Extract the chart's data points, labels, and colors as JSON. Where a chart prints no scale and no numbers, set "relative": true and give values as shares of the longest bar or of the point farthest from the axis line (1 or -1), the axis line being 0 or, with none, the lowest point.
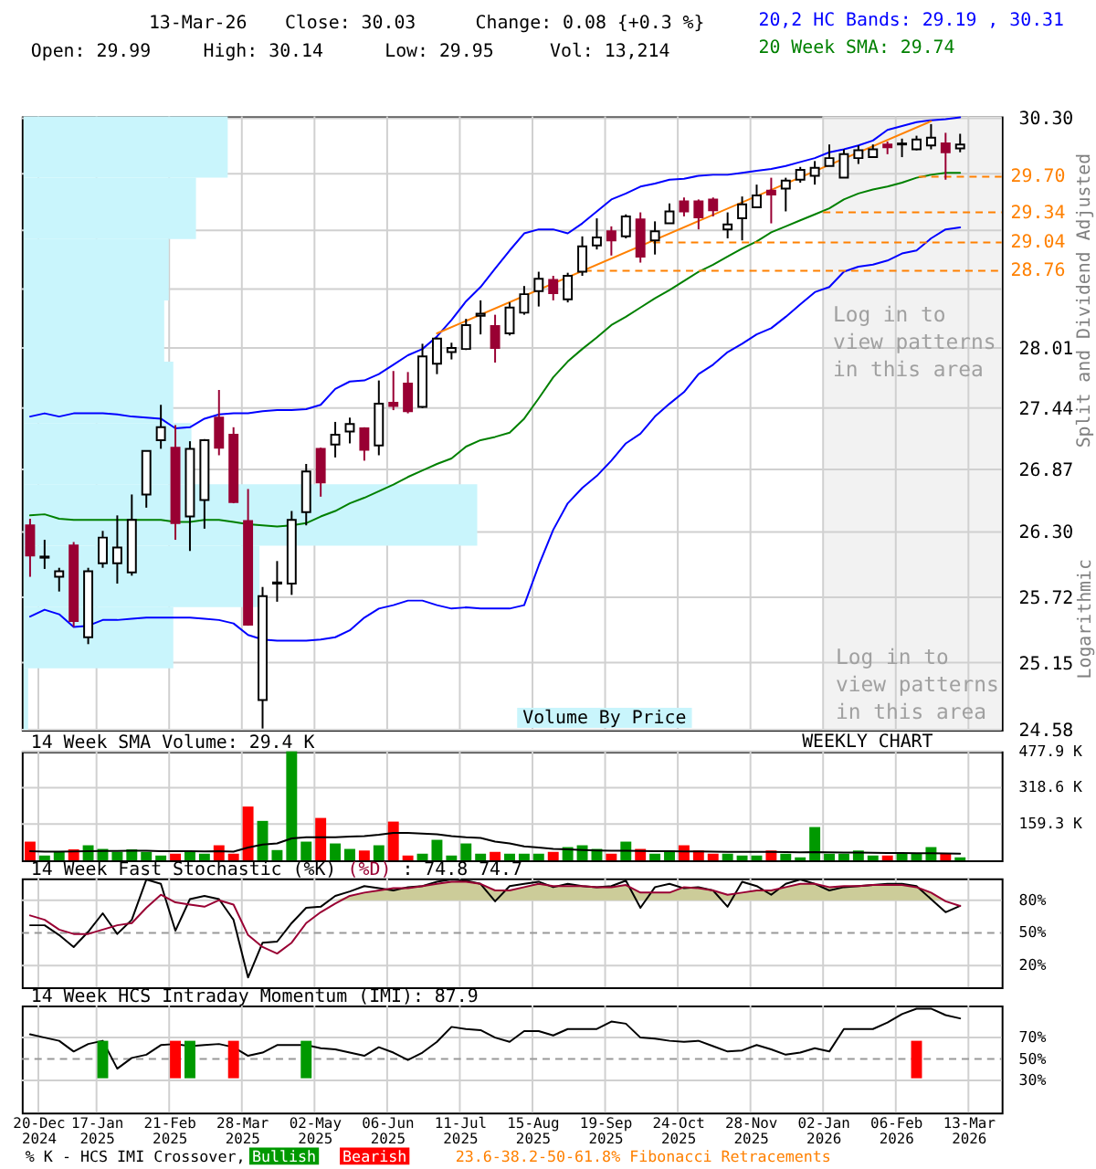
{
  "chart_data": [
    {
      "type": "candlestick",
      "annotations": [
        "13-Mar-26",
        "Close: 30.03",
        "Change: 0.08 {+0.3 %}",
        "Open: 29.99",
        "High: 30.14",
        "Low: 29.95",
        "Vol: 13,214",
        "Log in to view patterns in this area",
        "WEEKLY CHART",
        "Logarithmic"
      ],
      "ylabel": "Split and Dividend Adjusted",
      "x": [
        "2024-12-16",
        "2024-12-23",
        "2024-12-30",
        "2025-01-06",
        "2025-01-13",
        "2025-01-20",
        "2025-01-27",
        "2025-02-03",
        "2025-02-10",
        "2025-02-17",
        "2025-02-24",
        "2025-03-03",
        "2025-03-10",
        "2025-03-17",
        "2025-03-24",
        "2025-03-31",
        "2025-04-07",
        "2025-04-14",
        "2025-04-21",
        "2025-04-28",
        "2025-05-05",
        "2025-05-12",
        "2025-05-19",
        "2025-05-26",
        "2025-06-02",
        "2025-06-09",
        "2025-06-16",
        "2025-06-23",
        "2025-06-30",
        "2025-07-07",
        "2025-07-14",
        "2025-07-21",
        "2025-07-28",
        "2025-08-04",
        "2025-08-11",
        "2025-08-18",
        "2025-08-25",
        "2025-09-01",
        "2025-09-08",
        "2025-09-15",
        "2025-09-22",
        "2025-09-29",
        "2025-10-06",
        "2025-10-13",
        "2025-10-20",
        "2025-10-27",
        "2025-11-03",
        "2025-11-10",
        "2025-11-17",
        "2025-11-24",
        "2025-12-01",
        "2025-12-08",
        "2025-12-15",
        "2025-12-22",
        "2025-12-29",
        "2026-01-05",
        "2026-01-12",
        "2026-01-19",
        "2026-01-26",
        "2026-02-02",
        "2026-02-09",
        "2026-02-16",
        "2026-02-23",
        "2026-03-02",
        "2026-03-09"
      ],
      "ohlc": [
        [
          26.36,
          26.42,
          25.9,
          26.09
        ],
        [
          26.07,
          26.23,
          25.97,
          26.08
        ],
        [
          25.9,
          25.98,
          25.77,
          25.95
        ],
        [
          26.18,
          26.21,
          25.46,
          25.51
        ],
        [
          25.37,
          25.98,
          25.31,
          25.95
        ],
        [
          26.02,
          26.31,
          25.98,
          26.25
        ],
        [
          26.02,
          26.45,
          25.84,
          26.16
        ],
        [
          25.94,
          26.64,
          25.91,
          26.41
        ],
        [
          26.64,
          27.04,
          26.52,
          27.04
        ],
        [
          27.14,
          27.47,
          27.06,
          27.26
        ],
        [
          27.07,
          27.28,
          26.23,
          26.38
        ],
        [
          26.44,
          27.13,
          26.13,
          27.06
        ],
        [
          26.59,
          27.15,
          26.33,
          27.14
        ],
        [
          27.35,
          27.61,
          27.0,
          27.07
        ],
        [
          27.19,
          27.26,
          26.56,
          26.57
        ],
        [
          26.4,
          26.69,
          25.47,
          25.48
        ],
        [
          24.83,
          25.81,
          24.59,
          25.73
        ],
        [
          25.84,
          26.04,
          25.68,
          25.85
        ],
        [
          25.84,
          26.49,
          25.74,
          26.41
        ],
        [
          26.48,
          26.92,
          26.36,
          26.85
        ],
        [
          27.06,
          27.07,
          26.62,
          26.75
        ],
        [
          27.1,
          27.31,
          26.98,
          27.19
        ],
        [
          27.22,
          27.35,
          27.11,
          27.29
        ],
        [
          27.25,
          27.26,
          26.95,
          27.05
        ],
        [
          27.09,
          27.7,
          27.0,
          27.48
        ],
        [
          27.49,
          27.79,
          27.42,
          27.46
        ],
        [
          27.67,
          27.78,
          27.39,
          27.41
        ],
        [
          27.45,
          28.05,
          27.44,
          27.93
        ],
        [
          27.86,
          28.11,
          27.76,
          28.1
        ],
        [
          27.97,
          28.06,
          27.9,
          28.01
        ],
        [
          28.0,
          28.29,
          27.99,
          28.23
        ],
        [
          28.32,
          28.47,
          28.14,
          28.34
        ],
        [
          28.22,
          28.33,
          27.87,
          28.01
        ],
        [
          28.15,
          28.45,
          28.13,
          28.4
        ],
        [
          28.35,
          28.61,
          28.33,
          28.53
        ],
        [
          28.56,
          28.75,
          28.41,
          28.68
        ],
        [
          28.67,
          28.71,
          28.47,
          28.54
        ],
        [
          28.48,
          28.74,
          28.45,
          28.71
        ],
        [
          28.75,
          29.1,
          28.71,
          29.0
        ],
        [
          29.01,
          29.28,
          28.97,
          29.09
        ],
        [
          29.15,
          29.2,
          28.91,
          29.06
        ],
        [
          29.1,
          29.32,
          29.08,
          29.3
        ],
        [
          29.27,
          29.34,
          28.84,
          28.9
        ],
        [
          29.06,
          29.25,
          28.92,
          29.15
        ],
        [
          29.23,
          29.43,
          29.23,
          29.35
        ],
        [
          29.45,
          29.49,
          29.3,
          29.35
        ],
        [
          29.45,
          29.47,
          29.17,
          29.29
        ],
        [
          29.47,
          29.49,
          29.3,
          29.36
        ],
        [
          29.17,
          29.34,
          29.08,
          29.22
        ],
        [
          29.28,
          29.5,
          29.06,
          29.42
        ],
        [
          29.39,
          29.62,
          29.39,
          29.51
        ],
        [
          29.56,
          29.69,
          29.23,
          29.52
        ],
        [
          29.58,
          29.69,
          29.35,
          29.66
        ],
        [
          29.67,
          29.8,
          29.64,
          29.77
        ],
        [
          29.71,
          29.86,
          29.62,
          29.79
        ],
        [
          29.81,
          30.03,
          29.81,
          29.89
        ],
        [
          29.69,
          29.98,
          29.69,
          29.93
        ],
        [
          29.89,
          30.02,
          29.83,
          29.97
        ],
        [
          29.9,
          30.03,
          29.9,
          29.98
        ],
        [
          30.03,
          30.06,
          29.93,
          30.0
        ],
        [
          30.03,
          30.09,
          29.9,
          30.04
        ],
        [
          29.98,
          30.12,
          29.97,
          30.08
        ],
        [
          30.02,
          30.24,
          29.98,
          30.1
        ],
        [
          30.04,
          30.15,
          29.67,
          29.95
        ],
        [
          29.99,
          30.14,
          29.95,
          30.03
        ]
      ],
      "colors": [
        "#990033",
        "#000000",
        "#000000",
        "#990033",
        "#000000",
        "#000000",
        "#000000",
        "#000000",
        "#000000",
        "#000000",
        "#990033",
        "#000000",
        "#000000",
        "#990033",
        "#990033",
        "#990033",
        "#000000",
        "#000000",
        "#000000",
        "#000000",
        "#990033",
        "#000000",
        "#000000",
        "#990033",
        "#000000",
        "#990033",
        "#990033",
        "#000000",
        "#000000",
        "#000000",
        "#000000",
        "#000000",
        "#990033",
        "#000000",
        "#000000",
        "#000000",
        "#990033",
        "#000000",
        "#000000",
        "#000000",
        "#990033",
        "#000000",
        "#990033",
        "#000000",
        "#000000",
        "#990033",
        "#990033",
        "#990033",
        "#000000",
        "#000000",
        "#000000",
        "#990033",
        "#000000",
        "#000000",
        "#000000",
        "#000000",
        "#000000",
        "#000000",
        "#000000",
        "#990033",
        "#000000",
        "#000000",
        "#000000",
        "#990033",
        "#000000"
      ],
      "series": [
        {
          "type": "line",
          "name": "20,2 HC Bands: 29.19 , 30.31",
          "color": "#0000ff",
          "values": [
            27.36,
            27.39,
            27.36,
            27.39,
            27.39,
            27.39,
            27.38,
            27.36,
            27.35,
            27.34,
            27.25,
            27.26,
            27.34,
            27.38,
            27.39,
            27.39,
            27.41,
            27.42,
            27.42,
            27.43,
            27.47,
            27.62,
            27.69,
            27.7,
            27.76,
            27.85,
            27.94,
            28.0,
            28.12,
            28.28,
            28.46,
            28.6,
            28.78,
            28.96,
            29.13,
            29.17,
            29.17,
            29.13,
            29.23,
            29.35,
            29.47,
            29.53,
            29.6,
            29.63,
            29.67,
            29.68,
            29.71,
            29.72,
            29.72,
            29.74,
            29.76,
            29.78,
            29.81,
            29.85,
            29.89,
            29.95,
            29.98,
            30.02,
            30.07,
            30.18,
            30.22,
            30.26,
            30.28,
            30.29,
            30.31
          ]
        },
        {
          "type": "line",
          "color": "#0000ff",
          "values": [
            25.55,
            25.61,
            25.57,
            25.46,
            25.47,
            25.52,
            25.52,
            25.53,
            25.54,
            25.54,
            25.54,
            25.54,
            25.53,
            25.52,
            25.49,
            25.39,
            25.35,
            25.34,
            25.34,
            25.34,
            25.35,
            25.37,
            25.43,
            25.54,
            25.62,
            25.65,
            25.69,
            25.69,
            25.65,
            25.62,
            25.63,
            25.62,
            25.62,
            25.62,
            25.65,
            26.0,
            26.32,
            26.56,
            26.7,
            26.81,
            26.95,
            27.11,
            27.2,
            27.36,
            27.48,
            27.59,
            27.76,
            27.85,
            27.97,
            28.05,
            28.14,
            28.2,
            28.31,
            28.43,
            28.55,
            28.6,
            28.75,
            28.8,
            28.82,
            28.86,
            28.93,
            28.96,
            29.08,
            29.17,
            29.19
          ]
        },
        {
          "type": "line",
          "name": "20 Week SMA: 29.74",
          "color": "#008000",
          "values": [
            26.45,
            26.46,
            26.42,
            26.41,
            26.41,
            26.41,
            26.41,
            26.41,
            26.41,
            26.41,
            26.39,
            26.39,
            26.41,
            26.41,
            26.39,
            26.37,
            26.36,
            26.35,
            26.36,
            26.38,
            26.44,
            26.49,
            26.56,
            26.61,
            26.67,
            26.73,
            26.8,
            26.86,
            26.92,
            26.97,
            27.08,
            27.14,
            27.17,
            27.21,
            27.34,
            27.53,
            27.73,
            27.88,
            28.0,
            28.11,
            28.23,
            28.31,
            28.4,
            28.49,
            28.57,
            28.66,
            28.75,
            28.82,
            28.9,
            28.98,
            29.05,
            29.14,
            29.2,
            29.26,
            29.32,
            29.38,
            29.47,
            29.53,
            29.57,
            29.6,
            29.64,
            29.69,
            29.72,
            29.74,
            29.74
          ]
        },
        {
          "type": "line",
          "color": "#ff8000",
          "x": [
            "2025-06-30",
            "2026-02-23"
          ],
          "values": [
            28.15,
            30.27
          ]
        },
        {
          "type": "line",
          "name": "29.70",
          "color": "#ff8000",
          "line_style": "dashed",
          "x": [
            "2026-02-17",
            "2026-03-29"
          ],
          "values": [
            29.7,
            29.7
          ]
        },
        {
          "type": "line",
          "name": "29.34",
          "color": "#ff8000",
          "line_style": "dashed",
          "x": [
            "2026-01-02",
            "2026-03-29"
          ],
          "values": [
            29.34,
            29.34
          ]
        },
        {
          "type": "line",
          "name": "29.04",
          "color": "#ff8000",
          "line_style": "dashed",
          "x": [
            "2025-10-12",
            "2026-03-29"
          ],
          "values": [
            29.04,
            29.04
          ]
        },
        {
          "type": "line",
          "name": "28.76",
          "color": "#ff8000",
          "line_style": "dashed",
          "x": [
            "2025-09-09",
            "2026-03-29"
          ],
          "values": [
            28.76,
            28.76
          ]
        }
      ],
      "bands": [
        {
          "axis": "x",
          "from": "2026-01-02",
          "to": "2026-03-29",
          "label": "Log in to view patterns in this area",
          "color": "#f2f2f2"
        }
      ],
      "log": true,
      "ylim": [
        24.58,
        30.32
      ],
      "yticks": [
        24.58,
        25.15,
        25.72,
        {
          "value": 26.3,
          "label": "26.30"
        },
        26.87,
        27.44,
        28.01,
        {
          "value": 28.58,
          "label": null
        },
        {
          "value": 29.16,
          "label": null
        },
        {
          "value": 29.73,
          "label": null
        },
        {
          "value": 30.3,
          "label": "30.30"
        }
      ],
      "xlim": [
        "2024-12-12",
        "2026-03-29"
      ],
      "xticks": [
        "2024-12-20",
        "2025-01-17",
        "2025-02-21",
        "2025-03-28",
        "2025-05-02",
        "2025-06-06",
        "2025-07-11",
        "2025-08-15",
        "2025-09-19",
        "2025-10-24",
        "2025-11-28",
        "2026-01-02",
        "2026-02-06",
        "2026-03-13"
      ],
      "grid": true,
      "tick_labels": "y"
    },
    {
      "type": "bar",
      "orientation": "horizontal",
      "relative": true,
      "legend": "bottom",
      "categories": [
        null,
        null,
        null,
        null,
        null,
        null,
        null,
        null,
        null,
        null
      ],
      "series": [
        {
          "name": "Volume By Price",
          "color": "#c9f5fc",
          "values": [
            0.45,
            0.38,
            0.32,
            0.31,
            0.33,
            0.37,
            1,
            0.52,
            0.33,
            0.01
          ]
        }
      ]
    },
    {
      "type": "bar",
      "title": "14 Week SMA Volume: 29.4 K",
      "x": [
        "2024-12-16",
        "2024-12-23",
        "2024-12-30",
        "2025-01-06",
        "2025-01-13",
        "2025-01-20",
        "2025-01-27",
        "2025-02-03",
        "2025-02-10",
        "2025-02-17",
        "2025-02-24",
        "2025-03-03",
        "2025-03-10",
        "2025-03-17",
        "2025-03-24",
        "2025-03-31",
        "2025-04-07",
        "2025-04-14",
        "2025-04-21",
        "2025-04-28",
        "2025-05-05",
        "2025-05-12",
        "2025-05-19",
        "2025-05-26",
        "2025-06-02",
        "2025-06-09",
        "2025-06-16",
        "2025-06-23",
        "2025-06-30",
        "2025-07-07",
        "2025-07-14",
        "2025-07-21",
        "2025-07-28",
        "2025-08-04",
        "2025-08-11",
        "2025-08-18",
        "2025-08-25",
        "2025-09-01",
        "2025-09-08",
        "2025-09-15",
        "2025-09-22",
        "2025-09-29",
        "2025-10-06",
        "2025-10-13",
        "2025-10-20",
        "2025-10-27",
        "2025-11-03",
        "2025-11-10",
        "2025-11-17",
        "2025-11-24",
        "2025-12-01",
        "2025-12-08",
        "2025-12-15",
        "2025-12-22",
        "2025-12-29",
        "2026-01-05",
        "2026-01-12",
        "2026-01-19",
        "2026-01-26",
        "2026-02-02",
        "2026-02-09",
        "2026-02-16",
        "2026-02-23",
        "2026-03-02",
        "2026-03-09"
      ],
      "series": [
        {
          "type": "bar",
          "colors": [
            "#ff0000",
            "#009900",
            "#009900",
            "#ff0000",
            "#009900",
            "#009900",
            "#009900",
            "#009900",
            "#009900",
            "#009900",
            "#ff0000",
            "#009900",
            "#009900",
            "#ff0000",
            "#ff0000",
            "#ff0000",
            "#009900",
            "#009900",
            "#009900",
            "#009900",
            "#ff0000",
            "#009900",
            "#009900",
            "#ff0000",
            "#009900",
            "#ff0000",
            "#ff0000",
            "#009900",
            "#009900",
            "#009900",
            "#009900",
            "#009900",
            "#ff0000",
            "#009900",
            "#009900",
            "#009900",
            "#ff0000",
            "#009900",
            "#009900",
            "#009900",
            "#ff0000",
            "#009900",
            "#ff0000",
            "#009900",
            "#009900",
            "#ff0000",
            "#ff0000",
            "#ff0000",
            "#009900",
            "#009900",
            "#009900",
            "#ff0000",
            "#009900",
            "#009900",
            "#009900",
            "#009900",
            "#009900",
            "#009900",
            "#009900",
            "#ff0000",
            "#009900",
            "#009900",
            "#009900",
            "#ff0000",
            "#009900"
          ],
          "values": [
            82,
            21,
            37,
            48,
            66,
            50,
            37,
            48,
            37,
            21,
            29,
            37,
            29,
            66,
            29,
            236,
            173,
            45,
            477.9,
            82,
            186,
            74,
            50,
            43,
            66,
            170,
            21,
            29,
            90,
            21,
            74,
            29,
            37,
            29,
            29,
            29,
            37,
            58,
            66,
            50,
            29,
            82,
            50,
            29,
            43,
            66,
            43,
            29,
            29,
            21,
            21,
            43,
            29,
            13,
            146,
            29,
            29,
            43,
            21,
            21,
            29,
            29,
            58,
            29,
            13
          ]
        },
        {
          "type": "line",
          "color": "#000000",
          "values": [
            40,
            38,
            38,
            39,
            40,
            41,
            41,
            42,
            42,
            40,
            40,
            40,
            39,
            40,
            38,
            56,
            69,
            74,
            96,
            101,
            101,
            101,
            104,
            106,
            112,
            120,
            120,
            117,
            114,
            106,
            101,
            98,
            82,
            74,
            61,
            56,
            50,
            48,
            45,
            43,
            42,
            42,
            41,
            40,
            40,
            39,
            39,
            38,
            37,
            37,
            37,
            37,
            36,
            35,
            36,
            35,
            34,
            34,
            33,
            32,
            32,
            31,
            31,
            30,
            29.4
          ]
        }
      ],
      "ylim": [
        0,
        477.9
      ],
      "yticks": [
        {
          "value": 159.3,
          "label": "159.3 K"
        },
        {
          "value": 318.6,
          "label": "318.6 K"
        },
        {
          "value": 477.9,
          "label": "477.9 K"
        }
      ],
      "xlim": [
        "2024-12-12",
        "2026-03-29"
      ],
      "xticks": [
        "2024-12-20",
        "2025-01-17",
        "2025-02-21",
        "2025-03-28",
        "2025-05-02",
        "2025-06-06",
        "2025-07-11",
        "2025-08-15",
        "2025-09-19",
        "2025-10-24",
        "2025-11-28",
        "2026-01-02",
        "2026-02-06",
        "2026-03-13"
      ],
      "grid": true,
      "tick_labels": "y"
    },
    {
      "type": "line",
      "title": "14 Week Fast Stochastic (%K)",
      "annotations": [
        ": 74.8",
        "74.7"
      ],
      "x": [
        "2024-12-16",
        "2024-12-23",
        "2024-12-30",
        "2025-01-06",
        "2025-01-13",
        "2025-01-20",
        "2025-01-27",
        "2025-02-03",
        "2025-02-10",
        "2025-02-17",
        "2025-02-24",
        "2025-03-03",
        "2025-03-10",
        "2025-03-17",
        "2025-03-24",
        "2025-03-31",
        "2025-04-07",
        "2025-04-14",
        "2025-04-21",
        "2025-04-28",
        "2025-05-05",
        "2025-05-12",
        "2025-05-19",
        "2025-05-26",
        "2025-06-02",
        "2025-06-09",
        "2025-06-16",
        "2025-06-23",
        "2025-06-30",
        "2025-07-07",
        "2025-07-14",
        "2025-07-21",
        "2025-07-28",
        "2025-08-04",
        "2025-08-11",
        "2025-08-18",
        "2025-08-25",
        "2025-09-01",
        "2025-09-08",
        "2025-09-15",
        "2025-09-22",
        "2025-09-29",
        "2025-10-06",
        "2025-10-13",
        "2025-10-20",
        "2025-10-27",
        "2025-11-03",
        "2025-11-10",
        "2025-11-17",
        "2025-11-24",
        "2025-12-01",
        "2025-12-08",
        "2025-12-15",
        "2025-12-22",
        "2025-12-29",
        "2026-01-05",
        "2026-01-12",
        "2026-01-19",
        "2026-01-26",
        "2026-02-02",
        "2026-02-09",
        "2026-02-16",
        "2026-02-23",
        "2026-03-02",
        "2026-03-09"
      ],
      "series": [
        {
          "color": "#000000",
          "values": [
            57,
            57,
            48,
            37,
            51,
            68,
            49,
            62,
            99,
            95,
            52,
            81,
            84,
            81,
            62,
            9,
            41,
            42,
            59,
            73,
            74,
            84,
            88,
            93,
            91,
            89,
            92,
            93,
            97,
            99,
            98,
            95,
            79,
            93,
            95,
            97,
            92,
            95,
            93,
            92,
            93,
            98,
            73,
            92,
            95,
            91,
            92,
            89,
            74,
            97,
            93,
            85,
            95,
            99,
            95,
            89,
            92,
            93,
            94,
            95,
            95,
            93,
            81,
            69,
            74.8
          ]
        },
        {
          "name": "(%D)",
          "color": "#990033",
          "values": [
            66,
            62,
            53,
            49,
            49,
            53,
            57,
            59,
            73,
            85,
            78,
            76,
            74,
            80,
            76,
            48,
            37,
            31,
            41,
            59,
            69,
            77,
            84,
            87,
            89,
            91,
            91,
            93,
            95,
            97,
            97,
            95,
            89,
            89,
            92,
            95,
            93,
            93,
            93,
            92,
            92,
            94,
            87,
            87,
            87,
            92,
            91,
            89,
            85,
            87,
            89,
            89,
            92,
            95,
            95,
            92,
            93,
            93,
            94,
            94,
            94,
            92,
            87,
            79,
            74.7
          ],
          "lower": [
            null,
            null,
            null,
            null,
            null,
            null,
            null,
            null,
            null,
            null,
            null,
            null,
            null,
            null,
            null,
            null,
            null,
            null,
            null,
            null,
            null,
            80,
            80,
            80,
            80,
            80,
            80,
            80,
            80,
            80,
            80,
            80,
            80,
            80,
            80,
            80,
            80,
            80,
            80,
            80,
            80,
            80,
            80,
            80,
            80,
            80,
            80,
            80,
            80,
            80,
            80,
            80,
            80,
            80,
            80,
            80,
            80,
            80,
            80,
            80,
            80,
            80,
            80,
            80,
            null
          ],
          "upper": [
            null,
            null,
            null,
            null,
            null,
            null,
            null,
            null,
            null,
            null,
            null,
            null,
            null,
            null,
            null,
            null,
            null,
            null,
            null,
            null,
            null,
            80,
            84,
            87,
            89,
            91,
            91,
            93,
            95,
            97,
            97,
            95,
            89,
            89,
            92,
            95,
            93,
            93,
            93,
            92,
            92,
            94,
            87,
            87,
            87,
            92,
            91,
            89,
            85,
            87,
            89,
            89,
            92,
            95,
            95,
            92,
            93,
            93,
            94,
            94,
            94,
            92,
            87,
            80,
            null
          ]
        }
      ],
      "ref_lines": [
        {
          "axis": "y",
          "value": 50,
          "color": "#999999",
          "line_style": "dashed"
        }
      ],
      "ylim": [
        0,
        100
      ],
      "yticks": [
        {
          "value": 20,
          "label": "20%"
        },
        {
          "value": 50,
          "label": "50%"
        },
        {
          "value": 80,
          "label": "80%"
        }
      ],
      "xlim": [
        "2024-12-12",
        "2026-03-29"
      ],
      "xticks": [
        "2024-12-20",
        "2025-01-17",
        "2025-02-21",
        "2025-03-28",
        "2025-05-02",
        "2025-06-06",
        "2025-07-11",
        "2025-08-15",
        "2025-09-19",
        "2025-10-24",
        "2025-11-28",
        "2026-01-02",
        "2026-02-06",
        "2026-03-13"
      ],
      "grid": true,
      "tick_labels": "y"
    },
    {
      "type": "line",
      "title": "14 Week HCS Intraday Momentum (IMI): 87.9",
      "annotations": [
        "23.6-38.2-50-61.8% Fibonacci Retracements"
      ],
      "legend": "bottom",
      "legend_title": "% K - HCS IMI Crossover,",
      "x": [
        "2024-12-16",
        "2024-12-23",
        "2024-12-30",
        "2025-01-06",
        "2025-01-13",
        "2025-01-20",
        "2025-01-27",
        "2025-02-03",
        "2025-02-10",
        "2025-02-17",
        "2025-02-24",
        "2025-03-03",
        "2025-03-10",
        "2025-03-17",
        "2025-03-24",
        "2025-03-31",
        "2025-04-07",
        "2025-04-14",
        "2025-04-21",
        "2025-04-28",
        "2025-05-05",
        "2025-05-12",
        "2025-05-19",
        "2025-05-26",
        "2025-06-02",
        "2025-06-09",
        "2025-06-16",
        "2025-06-23",
        "2025-06-30",
        "2025-07-07",
        "2025-07-14",
        "2025-07-21",
        "2025-07-28",
        "2025-08-04",
        "2025-08-11",
        "2025-08-18",
        "2025-08-25",
        "2025-09-01",
        "2025-09-08",
        "2025-09-15",
        "2025-09-22",
        "2025-09-29",
        "2025-10-06",
        "2025-10-13",
        "2025-10-20",
        "2025-10-27",
        "2025-11-03",
        "2025-11-10",
        "2025-11-17",
        "2025-11-24",
        "2025-12-01",
        "2025-12-08",
        "2025-12-15",
        "2025-12-22",
        "2025-12-29",
        "2026-01-05",
        "2026-01-12",
        "2026-01-19",
        "2026-01-26",
        "2026-02-02",
        "2026-02-09",
        "2026-02-16",
        "2026-02-23",
        "2026-03-02",
        "2026-03-09"
      ],
      "series": [
        {
          "color": "#000000",
          "values": [
            73,
            70,
            67,
            57,
            64,
            67,
            41,
            51,
            54,
            63,
            64,
            62,
            63,
            64,
            61,
            53,
            56,
            63,
            63,
            63,
            60,
            59,
            56,
            53,
            61,
            56,
            49,
            56,
            66,
            80,
            78,
            77,
            70,
            66,
            76,
            76,
            72,
            78,
            78,
            78,
            85,
            83,
            70,
            69,
            67,
            66,
            67,
            62,
            57,
            58,
            63,
            59,
            54,
            56,
            60,
            57,
            78,
            78,
            78,
            84,
            92,
            97,
            97,
            91,
            87.9
          ]
        },
        {
          "type": "bar",
          "name": "Bullish",
          "color": "#009900",
          "x": [
            "2025-01-20",
            "2025-03-03",
            "2025-04-28"
          ],
          "values": [
            35,
            35,
            35
          ],
          "base": [
            32,
            32,
            32
          ]
        },
        {
          "type": "bar",
          "name": "Bearish",
          "color": "#ff0000",
          "x": [
            "2025-02-24",
            "2025-03-24",
            "2026-02-16"
          ],
          "values": [
            35,
            35,
            35
          ],
          "base": [
            32,
            32,
            32
          ]
        }
      ],
      "ref_lines": [
        {
          "axis": "y",
          "value": 50,
          "color": "#999999",
          "line_style": "dashed"
        }
      ],
      "ylim": [
        0,
        100
      ],
      "yticks": [
        {
          "value": 30,
          "label": "30%"
        },
        {
          "value": 50,
          "label": "50%"
        },
        {
          "value": 70,
          "label": "70%"
        }
      ],
      "xlim": [
        "2024-12-12",
        "2026-03-29"
      ],
      "xticks": [
        {
          "value": "2024-12-20",
          "label": "20-Dec\n2024"
        },
        {
          "value": "2025-01-17",
          "label": "17-Jan\n2025"
        },
        {
          "value": "2025-02-21",
          "label": "21-Feb\n2025"
        },
        {
          "value": "2025-03-28",
          "label": "28-Mar\n2025"
        },
        {
          "value": "2025-05-02",
          "label": "02-May\n2025"
        },
        {
          "value": "2025-06-06",
          "label": "06-Jun\n2025"
        },
        {
          "value": "2025-07-11",
          "label": "11-Jul\n2025"
        },
        {
          "value": "2025-08-15",
          "label": "15-Aug\n2025"
        },
        {
          "value": "2025-09-19",
          "label": "19-Sep\n2025"
        },
        {
          "value": "2025-10-24",
          "label": "24-Oct\n2025"
        },
        {
          "value": "2025-11-28",
          "label": "28-Nov\n2025"
        },
        {
          "value": "2026-01-02",
          "label": "02-Jan\n2026"
        },
        {
          "value": "2026-02-06",
          "label": "06-Feb\n2026"
        },
        {
          "value": "2026-03-13",
          "label": "13-Mar\n2026"
        }
      ],
      "grid": true
    }
  ]
}
